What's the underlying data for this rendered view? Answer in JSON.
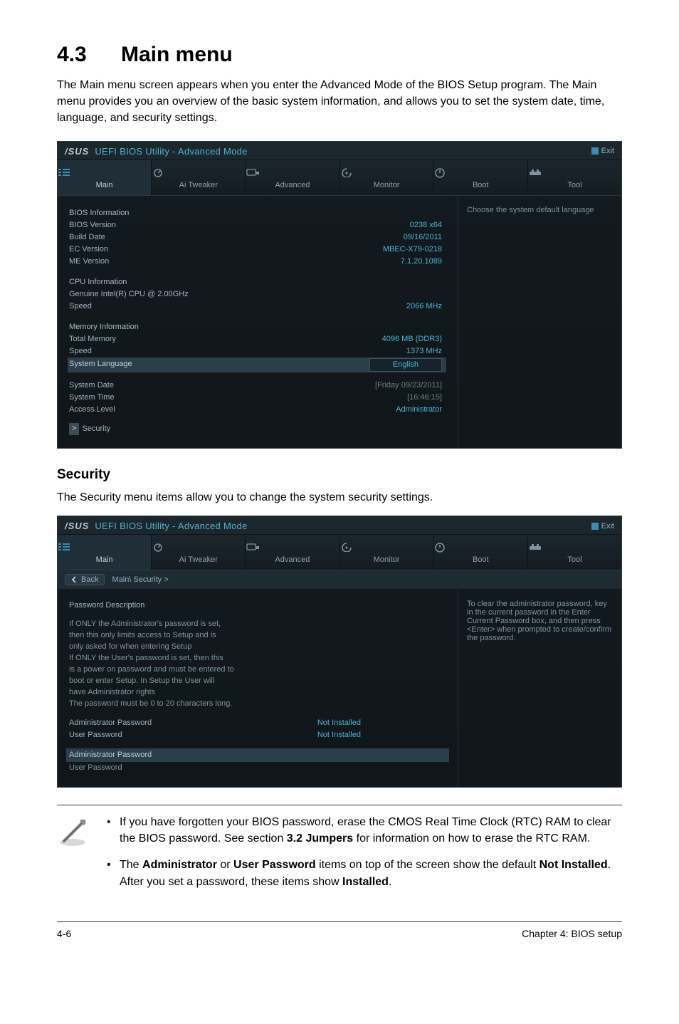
{
  "page": {
    "section_number": "4.3",
    "section_title": "Main menu",
    "intro": "The Main menu screen appears when you enter the Advanced Mode of the BIOS Setup program. The Main menu provides you an overview of the basic system information, and allows you to set the system date, time, language, and security settings.",
    "security_heading": "Security",
    "security_text": "The Security menu items allow you to change the system security settings.",
    "footer_left": "4-6",
    "footer_right": "Chapter 4: BIOS setup"
  },
  "colors": {
    "bios_bg_top": "#1a242b",
    "bios_bg_bottom": "#101619",
    "bios_text": "#9fb3bf",
    "bios_accent": "#4fb2d3",
    "bios_highlight_bg": "#2b3e49",
    "bios_border": "#2b3840",
    "tab_active_bg": "#1f2e37"
  },
  "bios_common": {
    "brand": "/SUS",
    "title": "UEFI BIOS Utility - Advanced Mode",
    "exit_label": "Exit",
    "tabs": [
      "Main",
      "Ai Tweaker",
      "Advanced",
      "Monitor",
      "Boot",
      "Tool"
    ]
  },
  "bios_main": {
    "active_tab": 0,
    "help_text": "Choose the system default language",
    "rows": [
      {
        "type": "head",
        "label": "BIOS Information"
      },
      {
        "type": "kv",
        "label": "BIOS Version",
        "value": "0238 x64"
      },
      {
        "type": "kv",
        "label": "Build Date",
        "value": "09/16/2011"
      },
      {
        "type": "kv",
        "label": "EC Version",
        "value": "MBEC-X79-0218"
      },
      {
        "type": "kv",
        "label": "ME Version",
        "value": "7.1.20.1089"
      },
      {
        "type": "blank"
      },
      {
        "type": "head",
        "label": "CPU Information"
      },
      {
        "type": "kv",
        "label": "Genuine Intel(R) CPU @ 2.00GHz",
        "value": ""
      },
      {
        "type": "kv",
        "label": "Speed",
        "value": "2066 MHz"
      },
      {
        "type": "blank"
      },
      {
        "type": "head",
        "label": "Memory Information"
      },
      {
        "type": "kv",
        "label": "Total Memory",
        "value": "4096 MB (DDR3)"
      },
      {
        "type": "kv",
        "label": "Speed",
        "value": "1373 MHz"
      }
    ],
    "selected": {
      "label": "System Language",
      "value": "English"
    },
    "after_selected": [
      {
        "type": "blank"
      },
      {
        "type": "kv",
        "label": "System Date",
        "value": "[Friday 09/23/2011]",
        "dim": true
      },
      {
        "type": "kv",
        "label": "System Time",
        "value": "[16:46:15]",
        "dim": true
      },
      {
        "type": "kv",
        "label": "Access Level",
        "value": "Administrator"
      },
      {
        "type": "blank"
      },
      {
        "type": "nav",
        "label": "Security"
      }
    ]
  },
  "bios_security": {
    "active_tab": 0,
    "breadcrumb_back": "Back",
    "breadcrumb_path": "Main\\ Security  >",
    "help_text": "To clear the administrator password, key in the current password in the Enter Current Password box, and then press <Enter> when prompted to create/confirm the password.",
    "desc_head": "Password Description",
    "desc_lines": [
      "If ONLY the Administrator's password is set,",
      "then this only limits access to Setup and is",
      "only asked for when entering Setup",
      "If ONLY the User's password is set, then this",
      "is a power on password and must be entered to",
      "boot or enter Setup. In Setup the User will",
      "have Administrator rights",
      "The password must be 0 to 20 characters long."
    ],
    "pwd_rows": [
      {
        "label": "Administrator Password",
        "value": "Not Installed"
      },
      {
        "label": "User Password",
        "value": "Not Installed"
      }
    ],
    "selected_label": "Administrator Password",
    "after_label": "User Password"
  },
  "notes": {
    "items": [
      "If you have forgotten your BIOS password, erase the CMOS Real Time Clock (RTC) RAM to clear the BIOS password. See section <b>3.2 Jumpers</b> for information on how to erase the RTC RAM.",
      "The <b>Administrator</b> or <b>User Password</b> items on top of the screen show the default <b>Not Installed</b>. After you set a password, these items show <b>Installed</b>."
    ]
  }
}
